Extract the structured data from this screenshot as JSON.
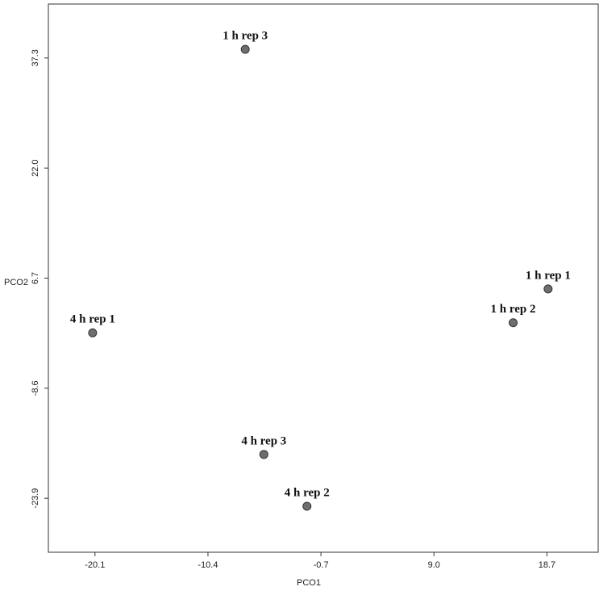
{
  "chart_data": {
    "type": "scatter",
    "x_label": "PCO1",
    "y_label": "PCO2",
    "labels": [
      "1 h rep 3",
      "1 h rep 1",
      "1 h rep 2",
      "4 h rep 1",
      "4 h rep 3",
      "4 h rep 2"
    ],
    "x": [
      -7.2,
      18.8,
      15.8,
      -20.3,
      -5.6,
      -1.9
    ],
    "values": [
      38.5,
      5.2,
      0.5,
      -0.9,
      -17.8,
      -25.0
    ],
    "color": "#6e6e6e",
    "xlim": [
      -24.1,
      23.1
    ],
    "ylim": [
      -31.4,
      44.8
    ],
    "xticks": [
      -20.1,
      -10.4,
      -0.7,
      {
        "value": 9,
        "label": "9.0"
      },
      18.7
    ],
    "yticks": [
      -23.9,
      -8.6,
      6.7,
      {
        "value": 22,
        "label": "22.0"
      },
      37.3
    ]
  }
}
